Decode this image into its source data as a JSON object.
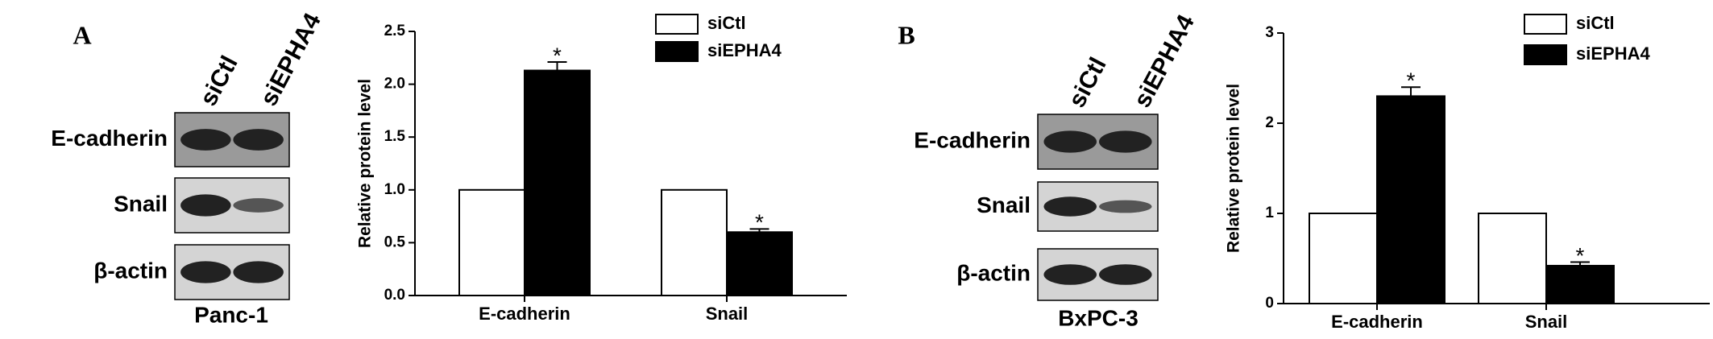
{
  "panels": [
    {
      "label": "A",
      "lanes": [
        "siCtl",
        "siEPHA4"
      ],
      "proteins": [
        "E-cadherin",
        "Snail",
        "β-actin"
      ],
      "cell_line": "Panc-1"
    },
    {
      "label": "B",
      "lanes": [
        "siCtl",
        "siEPHA4"
      ],
      "proteins": [
        "E-cadherin",
        "Snail",
        "β-actin"
      ],
      "cell_line": "BxPC-3"
    }
  ],
  "chart_data": [
    {
      "type": "bar",
      "y_label": "Relative  protein level",
      "categories": [
        "E-cadherin",
        "Snail"
      ],
      "series": [
        {
          "name": "siCtl",
          "color": "#ffffff",
          "values": [
            1.0,
            1.0
          ]
        },
        {
          "name": "siEPHA4",
          "color": "#000000",
          "values": [
            2.13,
            0.6
          ],
          "errors": [
            0.08,
            0.03
          ],
          "significance": [
            "*",
            "*"
          ]
        }
      ],
      "ylim": [
        0,
        2.5
      ],
      "yticks": [
        {
          "value": 0,
          "label": "0.0"
        },
        0.5,
        {
          "value": 1,
          "label": "1.0"
        },
        1.5,
        {
          "value": 2,
          "label": "2.0"
        },
        2.5
      ],
      "legend": "top-right"
    },
    {
      "type": "bar",
      "y_label": "Relative protein level",
      "categories": [
        "E-cadherin",
        "Snail"
      ],
      "series": [
        {
          "name": "siCtl",
          "color": "#ffffff",
          "values": [
            1.0,
            1.0
          ]
        },
        {
          "name": "siEPHA4",
          "color": "#000000",
          "values": [
            2.3,
            0.42
          ],
          "errors": [
            0.1,
            0.04
          ],
          "significance": [
            "*",
            "*"
          ]
        }
      ],
      "ylim": [
        0,
        3
      ],
      "yticks": [
        0,
        1,
        2,
        3
      ],
      "legend": "top-right"
    }
  ]
}
